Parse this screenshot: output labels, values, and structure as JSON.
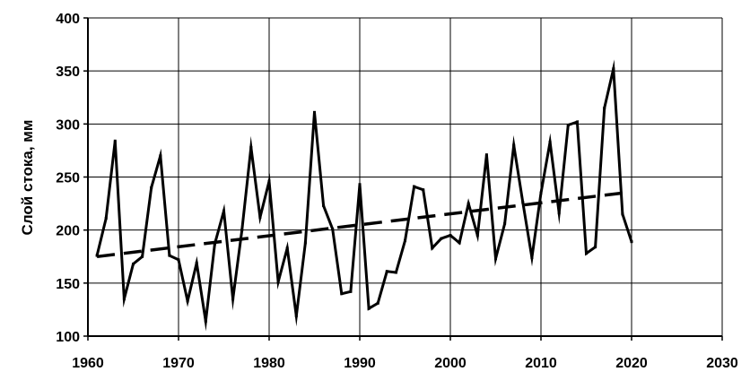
{
  "chart_data": {
    "type": "line",
    "title": "",
    "xlabel": "",
    "ylabel": "Слой стока, мм",
    "xlim": [
      1960,
      2030
    ],
    "ylim": [
      100,
      400
    ],
    "x_ticks": [
      1960,
      1970,
      1980,
      1990,
      2000,
      2010,
      2020,
      2030
    ],
    "y_ticks": [
      100,
      150,
      200,
      250,
      300,
      350,
      400
    ],
    "grid": true,
    "legend": "none",
    "series": [
      {
        "style": "solid",
        "color": "#000000",
        "x": [
          1961,
          1962,
          1963,
          1964,
          1965,
          1966,
          1967,
          1968,
          1969,
          1970,
          1971,
          1972,
          1973,
          1974,
          1975,
          1976,
          1977,
          1978,
          1979,
          1980,
          1981,
          1982,
          1983,
          1984,
          1985,
          1986,
          1987,
          1988,
          1989,
          1990,
          1991,
          1992,
          1993,
          1994,
          1995,
          1996,
          1997,
          1998,
          1999,
          2000,
          2001,
          2002,
          2003,
          2004,
          2005,
          2006,
          2007,
          2008,
          2009,
          2010,
          2011,
          2012,
          2013,
          2014,
          2015,
          2016,
          2017,
          2018,
          2019,
          2020
        ],
        "y": [
          176,
          211,
          284,
          135,
          168,
          175,
          240,
          270,
          176,
          172,
          133,
          169,
          114,
          187,
          218,
          135,
          200,
          278,
          212,
          246,
          151,
          183,
          119,
          188,
          311,
          223,
          201,
          140,
          142,
          243,
          126,
          131,
          161,
          160,
          190,
          241,
          238,
          183,
          192,
          195,
          188,
          225,
          195,
          271,
          173,
          206,
          280,
          226,
          174,
          235,
          283,
          216,
          299,
          302,
          178,
          184,
          315,
          352,
          215,
          189
        ]
      },
      {
        "style": "dashed",
        "color": "#000000",
        "x": [
          1961,
          2020
        ],
        "y": [
          175,
          236
        ]
      }
    ]
  }
}
